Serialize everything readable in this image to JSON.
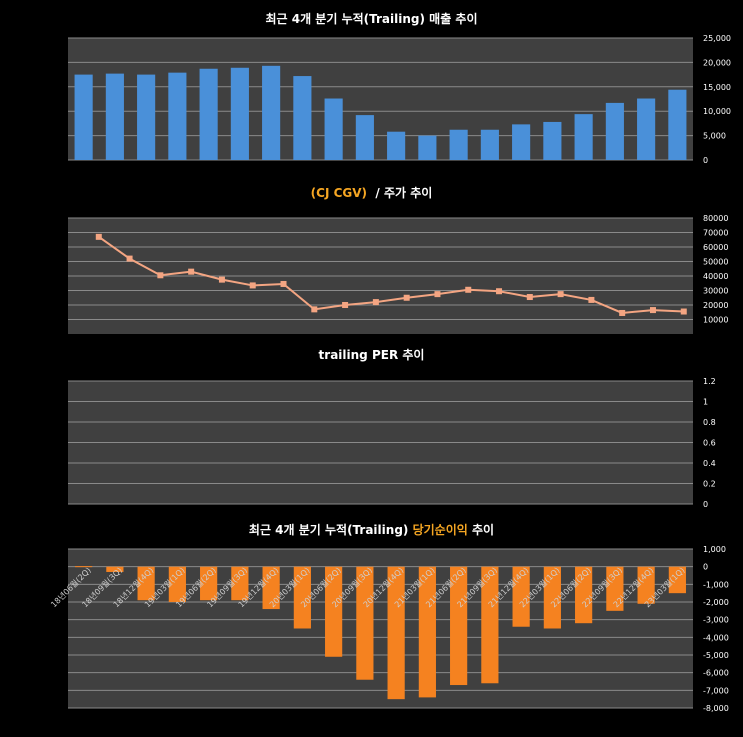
{
  "colors": {
    "background": "#000000",
    "plot_area": "#404040",
    "gridline": "#8a8a8a",
    "revenue_bar": "#4a90d9",
    "price_line": "#f4a582",
    "net_income_bar": "#f58220",
    "highlight_text": "#f5a623"
  },
  "titles": {
    "revenue": "최근 4개 분기 누적(Trailing) 매출 추이",
    "price_company": "(CJ CGV)",
    "price_suffix": "/ 주가 추이",
    "per": "trailing PER 추이",
    "net_prefix": "최근 4개 분기 누적(Trailing)",
    "net_highlight": "당기순이익",
    "net_suffix": "추이"
  },
  "chart_data": [
    {
      "id": "revenue",
      "type": "bar",
      "title": "최근 4개 분기 누적(Trailing) 매출 추이",
      "categories": [
        "18년06월(2Q)",
        "18년09월(3Q)",
        "18년12월(4Q)",
        "19년03월(1Q)",
        "19년06월(2Q)",
        "19년09월(3Q)",
        "19년12월(4Q)",
        "20년03월(1Q)",
        "20년06월(2Q)",
        "20년09월(3Q)",
        "20년12월(4Q)",
        "21년03월(1Q)",
        "21년06월(2Q)",
        "21년09월(3Q)",
        "21년12월(4Q)",
        "22년03월(1Q)",
        "22년06월(2Q)",
        "22년09월(3Q)",
        "22년12월(4Q)",
        "23년03월(1Q)"
      ],
      "values": [
        17500,
        17700,
        17500,
        17900,
        18700,
        18900,
        19300,
        17200,
        12600,
        9200,
        5800,
        5000,
        6200,
        6200,
        7300,
        7800,
        9400,
        11700,
        12600,
        14400
      ],
      "ylim": [
        0,
        25000
      ],
      "yticks": [
        "0",
        "5,000",
        "10,000",
        "15,000",
        "20,000",
        "25,000"
      ],
      "grid": true
    },
    {
      "id": "price",
      "type": "line",
      "title": "(CJ CGV) / 주가 추이",
      "values": [
        67000,
        52000,
        40500,
        43000,
        37500,
        33500,
        34500,
        17000,
        20000,
        22000,
        25000,
        27500,
        30500,
        29500,
        25500,
        27500,
        23500,
        14500,
        16500,
        15500
      ],
      "ylim": [
        0,
        80000
      ],
      "yticks": [
        "10000",
        "20000",
        "30000",
        "40000",
        "50000",
        "60000",
        "70000",
        "80000"
      ],
      "grid": true
    },
    {
      "id": "per",
      "type": "line",
      "title": "trailing PER 추이",
      "values": [],
      "ylim": [
        0,
        1.2
      ],
      "yticks": [
        "0",
        "0.2",
        "0.4",
        "0.6",
        "0.8",
        "1",
        "1.2"
      ],
      "grid": true
    },
    {
      "id": "net_income",
      "type": "bar",
      "title": "최근 4개 분기 누적(Trailing) 당기순이익 추이",
      "categories": [
        "18년06월(2Q)",
        "18년09월(3Q)",
        "18년12월(4Q)",
        "19년03월(1Q)",
        "19년06월(2Q)",
        "19년09월(3Q)",
        "19년12월(4Q)",
        "20년03월(1Q)",
        "20년06월(2Q)",
        "20년09월(3Q)",
        "20년12월(4Q)",
        "21년03월(1Q)",
        "21년06월(2Q)",
        "21년09월(3Q)",
        "21년12월(4Q)",
        "22년03월(1Q)",
        "22년06월(2Q)",
        "22년09월(3Q)",
        "22년12월(4Q)",
        "23년03월(1Q)"
      ],
      "values": [
        30,
        -300,
        -1900,
        -2000,
        -1900,
        -1900,
        -2400,
        -3500,
        -5100,
        -6400,
        -7500,
        -7400,
        -6700,
        -6600,
        -3400,
        -3500,
        -3200,
        -2500,
        -2100,
        -1500
      ],
      "ylim": [
        -8000,
        1000
      ],
      "yticks": [
        "1,000",
        "0",
        "-1,000",
        "-2,000",
        "-3,000",
        "-4,000",
        "-5,000",
        "-6,000",
        "-7,000",
        "-8,000"
      ],
      "grid": true
    }
  ]
}
